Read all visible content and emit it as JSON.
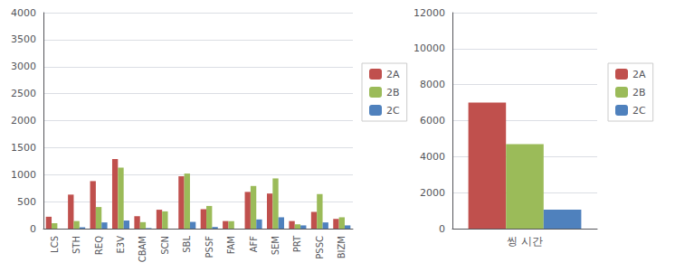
{
  "chart_data": [
    {
      "type": "bar",
      "categories": [
        "LCS",
        "STH",
        "REQ",
        "E3V",
        "CBAM",
        "SCN",
        "SBL",
        "PSSF",
        "FAM",
        "AFF",
        "SEM",
        "PRT",
        "PSSC",
        "BIZM"
      ],
      "series": [
        {
          "name": "2A",
          "color": "#C0504D",
          "values": [
            220,
            630,
            880,
            1290,
            230,
            350,
            970,
            360,
            140,
            680,
            650,
            140,
            310,
            180
          ]
        },
        {
          "name": "2B",
          "color": "#9BBB59",
          "values": [
            100,
            140,
            400,
            1130,
            120,
            320,
            1020,
            420,
            140,
            790,
            930,
            80,
            640,
            210
          ]
        },
        {
          "name": "2C",
          "color": "#4F81BD",
          "values": [
            0,
            25,
            115,
            150,
            10,
            0,
            125,
            30,
            0,
            170,
            210,
            60,
            115,
            60
          ]
        }
      ],
      "ylim": [
        0,
        4000
      ],
      "yticks": [
        0,
        500,
        1000,
        1500,
        2000,
        2500,
        3000,
        3500,
        4000
      ],
      "grid": true,
      "legend": "right"
    },
    {
      "type": "bar",
      "categories": [
        "씽 시간"
      ],
      "series": [
        {
          "name": "2A",
          "color": "#C0504D",
          "values": [
            7000
          ]
        },
        {
          "name": "2B",
          "color": "#9BBB59",
          "values": [
            4700
          ]
        },
        {
          "name": "2C",
          "color": "#4F81BD",
          "values": [
            1050
          ]
        }
      ],
      "ylim": [
        0,
        12000
      ],
      "yticks": [
        0,
        2000,
        4000,
        6000,
        8000,
        10000,
        12000
      ],
      "grid": true,
      "legend": "right"
    }
  ]
}
